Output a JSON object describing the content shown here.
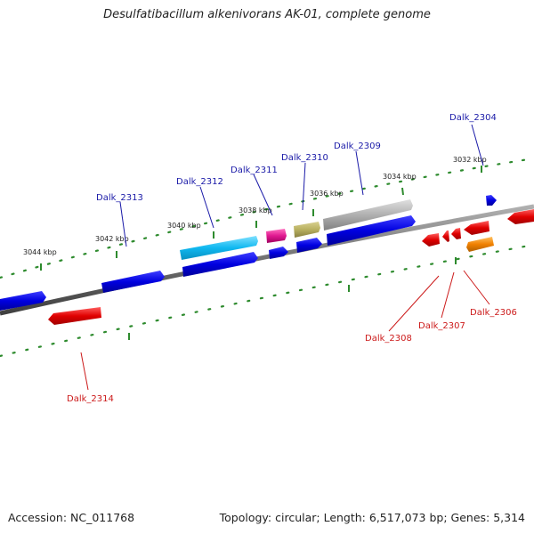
{
  "title": "Desulfatibacillum alkenivorans AK-01, complete genome",
  "footer": {
    "accession": "Accession: NC_011768",
    "summary": "Topology: circular; Length: 6,517,073 bp; Genes: 5,314"
  },
  "tick_labels": [
    "3032 kbp",
    "3034 kbp",
    "3036 kbp",
    "3038 kbp",
    "3040 kbp",
    "3042 kbp",
    "3044 kbp"
  ],
  "gene_labels": {
    "forward": [
      "Dalk_2304",
      "Dalk_2309",
      "Dalk_2310",
      "Dalk_2311",
      "Dalk_2312",
      "Dalk_2313"
    ],
    "reverse": [
      "Dalk_2306",
      "Dalk_2307",
      "Dalk_2308",
      "Dalk_2314"
    ]
  },
  "colors": {
    "forward_strand": "#0000e0",
    "reverse_strand": "#e00000",
    "backbone": "#707070",
    "tick_marks": "#2e8b2e",
    "cyan_gene": "#10b8f0",
    "magenta_gene": "#e01890",
    "olive_gene": "#b8b060",
    "gray_gene": "#b0b0b0",
    "orange_gene": "#f08000"
  }
}
